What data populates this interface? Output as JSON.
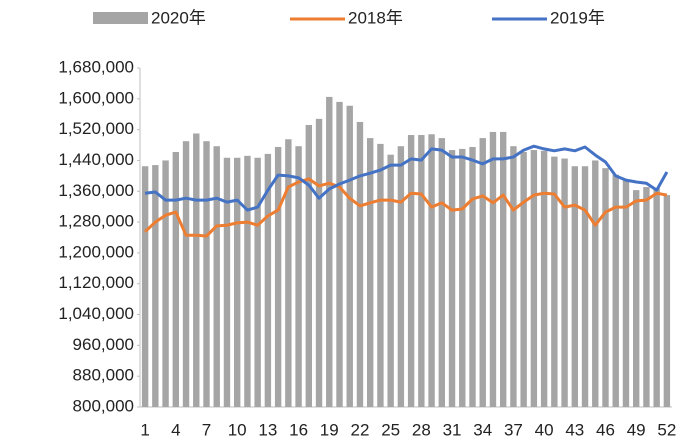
{
  "chart_data": {
    "type": "bar_line",
    "categories": [
      1,
      null,
      null,
      4,
      null,
      null,
      7,
      null,
      null,
      10,
      null,
      null,
      13,
      null,
      null,
      16,
      null,
      null,
      19,
      null,
      null,
      22,
      null,
      null,
      25,
      null,
      null,
      28,
      null,
      null,
      31,
      null,
      null,
      34,
      null,
      null,
      37,
      null,
      null,
      40,
      null,
      null,
      43,
      null,
      null,
      46,
      null,
      null,
      49,
      null,
      null,
      52
    ],
    "series": [
      {
        "name": "2020年",
        "type": "bar",
        "color": "#a5a5a5",
        "values": [
          1425000,
          1428000,
          1440000,
          1462000,
          1490000,
          1510000,
          1490000,
          1477000,
          1447000,
          1447000,
          1452000,
          1447000,
          1457000,
          1475000,
          1495000,
          1477000,
          1532000,
          1548000,
          1605000,
          1592000,
          1582000,
          1540000,
          1498000,
          1483000,
          1455000,
          1477000,
          1506000,
          1506000,
          1508000,
          1498000,
          1467000,
          1470000,
          1475000,
          1498000,
          1514000,
          1514000,
          1477000,
          1462000,
          1467000,
          1465000,
          1450000,
          1445000,
          1425000,
          1425000,
          1440000,
          1420000,
          1403000,
          1390000,
          1363000,
          1371000,
          1368000,
          1350000
        ]
      },
      {
        "name": "2018年",
        "type": "line",
        "color": "#ed7d31",
        "values": [
          1255000,
          1280000,
          1298000,
          1306000,
          1246000,
          1246000,
          1244000,
          1270000,
          1272000,
          1278000,
          1280000,
          1272000,
          1296000,
          1311000,
          1371000,
          1384000,
          1392000,
          1374000,
          1381000,
          1371000,
          1342000,
          1322000,
          1330000,
          1337000,
          1337000,
          1332000,
          1355000,
          1353000,
          1319000,
          1330000,
          1311000,
          1314000,
          1340000,
          1348000,
          1330000,
          1350000,
          1311000,
          1332000,
          1350000,
          1355000,
          1353000,
          1319000,
          1324000,
          1311000,
          1272000,
          1306000,
          1319000,
          1319000,
          1335000,
          1337000,
          1355000,
          1350000
        ]
      },
      {
        "name": "2019年",
        "type": "line",
        "color": "#4472c4",
        "values": [
          1355000,
          1358000,
          1337000,
          1337000,
          1342000,
          1337000,
          1337000,
          1342000,
          1332000,
          1337000,
          1311000,
          1319000,
          1363000,
          1402000,
          1400000,
          1395000,
          1376000,
          1342000,
          1366000,
          1379000,
          1389000,
          1400000,
          1407000,
          1415000,
          1428000,
          1428000,
          1444000,
          1441000,
          1470000,
          1467000,
          1449000,
          1449000,
          1441000,
          1431000,
          1444000,
          1444000,
          1449000,
          1467000,
          1477000,
          1470000,
          1465000,
          1470000,
          1465000,
          1475000,
          1454000,
          1436000,
          1400000,
          1389000,
          1384000,
          1381000,
          1363000,
          1410000
        ]
      }
    ],
    "ylim": [
      800000,
      1680000
    ],
    "yticks": [
      {
        "value": 800000,
        "label": "800,000"
      },
      {
        "value": 880000,
        "label": "880,000"
      },
      {
        "value": 960000,
        "label": "960,000"
      },
      {
        "value": 1040000,
        "label": "1,040,000"
      },
      {
        "value": 1120000,
        "label": "1,120,000"
      },
      {
        "value": 1200000,
        "label": "1,200,000"
      },
      {
        "value": 1280000,
        "label": "1,280,000"
      },
      {
        "value": 1360000,
        "label": "1,360,000"
      },
      {
        "value": 1440000,
        "label": "1,440,000"
      },
      {
        "value": 1520000,
        "label": "1,520,000"
      },
      {
        "value": 1600000,
        "label": "1,600,000"
      },
      {
        "value": 1680000,
        "label": "1,680,000"
      }
    ],
    "legend": "top"
  }
}
